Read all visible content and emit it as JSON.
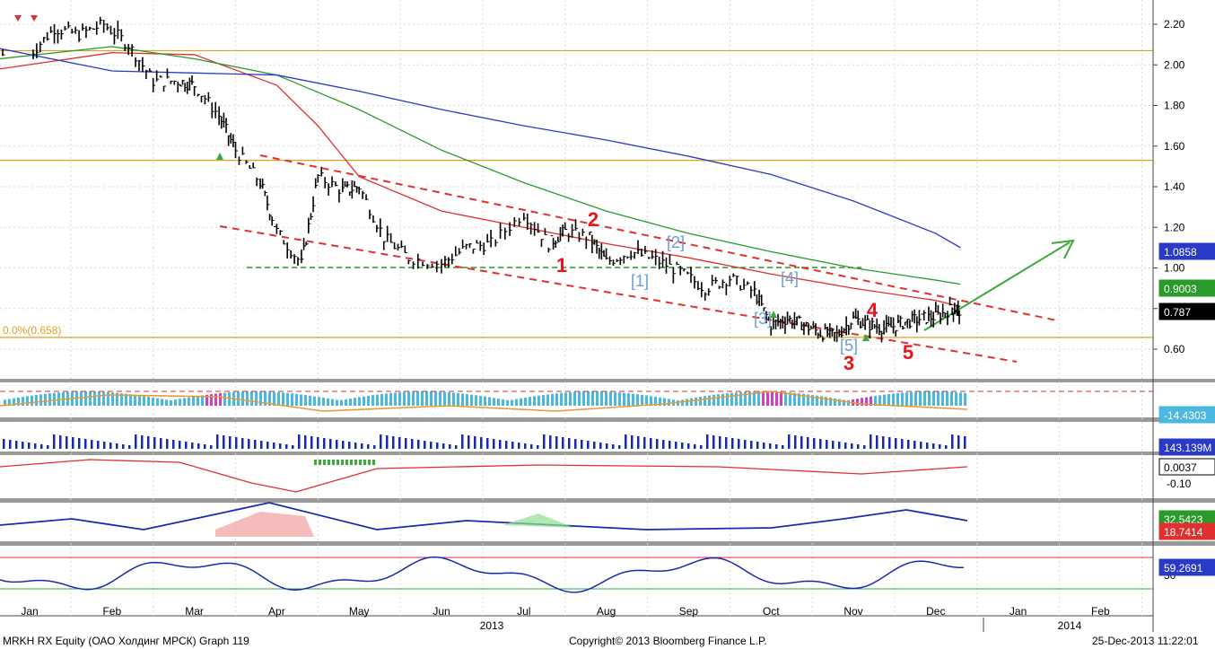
{
  "footer": {
    "left": "MRKH RX Equity (ОАО Холдинг МРСК) Graph 119",
    "center": "Copyright© 2013 Bloomberg Finance L.P.",
    "right": "25-Dec-2013 11:22:01"
  },
  "chart_data": {
    "type": "line",
    "title": "",
    "x_axis": {
      "months": [
        "Jan",
        "Feb",
        "Mar",
        "Apr",
        "May",
        "Jun",
        "Jul",
        "Aug",
        "Sep",
        "Oct",
        "Nov",
        "Dec",
        "Jan",
        "Feb"
      ],
      "years": [
        "2013",
        "2014"
      ]
    },
    "y_axis": {
      "ylim": [
        0.5,
        2.25
      ],
      "ticks": [
        "2.20",
        "2.00",
        "1.80",
        "1.60",
        "1.40",
        "1.20",
        "1.00",
        "0.80",
        "0.60"
      ]
    },
    "price_series": {
      "name": "",
      "x": [
        0.0,
        0.3,
        0.6,
        0.9,
        1.2,
        1.5,
        1.8,
        2.0,
        2.3,
        2.5,
        2.8,
        3.0,
        3.3,
        3.5,
        3.8,
        4.0,
        4.3,
        4.6,
        5.0,
        5.3,
        5.6,
        6.0,
        6.3,
        6.5,
        6.8,
        7.0,
        7.3,
        7.6,
        7.9,
        8.2,
        8.5,
        8.8,
        9.0,
        9.2,
        9.4,
        9.6,
        9.8,
        10.0,
        10.2,
        10.4,
        10.6,
        10.8,
        11.0,
        11.2,
        11.3
      ],
      "y": [
        2.05,
        2.18,
        2.15,
        2.2,
        2.1,
        1.92,
        1.92,
        1.9,
        1.75,
        1.58,
        1.42,
        1.18,
        1.02,
        1.45,
        1.38,
        1.4,
        1.15,
        1.05,
        1.02,
        1.1,
        1.12,
        1.27,
        1.12,
        1.18,
        1.15,
        1.03,
        1.08,
        1.04,
        0.98,
        0.9,
        0.95,
        0.88,
        0.72,
        0.75,
        0.72,
        0.68,
        0.67,
        0.75,
        0.72,
        0.7,
        0.73,
        0.75,
        0.76,
        0.8,
        0.79
      ]
    },
    "moving_averages": [
      {
        "color": "#e03030",
        "x": [
          0,
          1,
          2,
          3,
          3.5,
          4,
          5,
          6,
          7,
          8,
          9,
          10,
          11,
          11.3
        ],
        "y": [
          1.98,
          2.06,
          2.05,
          1.9,
          1.7,
          1.45,
          1.28,
          1.2,
          1.12,
          1.05,
          0.97,
          0.9,
          0.84,
          0.81
        ]
      },
      {
        "color": "#2a9a2a",
        "x": [
          0,
          1,
          2,
          3,
          4,
          5,
          6,
          7,
          8,
          9,
          10,
          11,
          11.3
        ],
        "y": [
          2.03,
          2.09,
          2.03,
          1.95,
          1.78,
          1.58,
          1.42,
          1.28,
          1.17,
          1.08,
          1.0,
          0.94,
          0.92
        ]
      },
      {
        "color": "#2a3ac8",
        "x": [
          0,
          1,
          2,
          3,
          4,
          5,
          6,
          7,
          8,
          9,
          10,
          11,
          11.3
        ],
        "y": [
          2.08,
          1.97,
          1.96,
          1.95,
          1.87,
          1.78,
          1.7,
          1.63,
          1.55,
          1.46,
          1.33,
          1.17,
          1.1
        ]
      }
    ],
    "horizontal_lines": [
      {
        "y": 2.07,
        "color": "#e0a020"
      },
      {
        "y": 1.53,
        "color": "#e0a020"
      },
      {
        "y": 0.658,
        "color": "#e0a020",
        "label": "0.0%(0.658)"
      }
    ],
    "right_badges": [
      {
        "value": "1.0858",
        "color": "#2a3ac8"
      },
      {
        "value": "0.9003",
        "color": "#2a9a2a"
      },
      {
        "value": "0.787",
        "color": "#000000"
      }
    ],
    "wave_labels_red": [
      "1",
      "2",
      "3",
      "4",
      "5"
    ],
    "wave_labels_blue": [
      "[1]",
      "[2]",
      "[3]",
      "[4]",
      "[5]"
    ],
    "sub_panels": [
      {
        "name": "histogram",
        "badge": "-14.4303",
        "badge_color": "#4ab8e0"
      },
      {
        "name": "volume",
        "badge": "143.139M",
        "badge_color": "#2a3ac8"
      },
      {
        "name": "oscillator",
        "badge": "0.0037",
        "badge_color": "#ffffff",
        "tick": "-0.10"
      },
      {
        "name": "dmi",
        "badges": [
          "32.5423",
          "18.7414"
        ],
        "badge_colors": [
          "#2a9a2a",
          "#e03030"
        ]
      },
      {
        "name": "rsi",
        "badge": "59.2691",
        "badge_color": "#2a3ac8",
        "tick": "30"
      }
    ]
  }
}
